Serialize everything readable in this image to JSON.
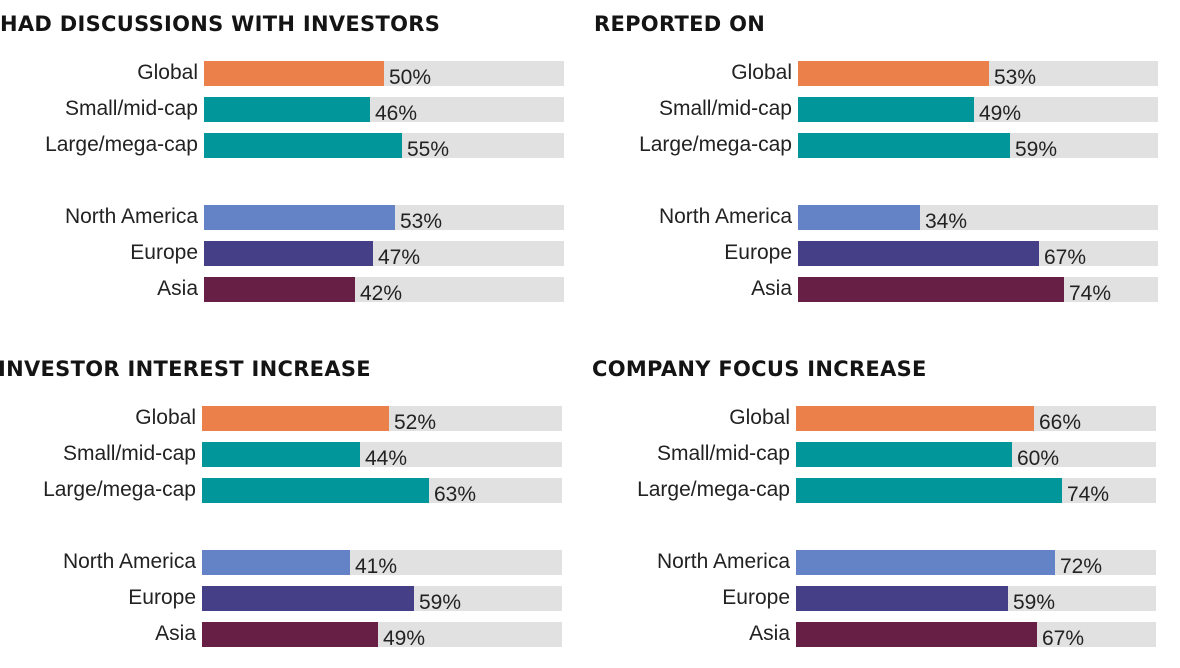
{
  "colors": {
    "Global": "#eb804a",
    "Small/mid-cap": "#00969a",
    "Large/mega-cap": "#00969a",
    "North America": "#6482c6",
    "Europe": "#443f86",
    "Asia": "#681f45",
    "track": "#e1e1e1"
  },
  "chart_data": [
    {
      "type": "bar",
      "orientation": "horizontal",
      "title": "HAD DISCUSSIONS WITH INVESTORS",
      "categories": [
        "Global",
        "Small/mid-cap",
        "Large/mega-cap",
        "North America",
        "Europe",
        "Asia"
      ],
      "values": [
        50,
        46,
        55,
        53,
        47,
        42
      ],
      "labels": [
        "50%",
        "46%",
        "55%",
        "53%",
        "47%",
        "42%"
      ],
      "xlim": [
        0,
        100
      ]
    },
    {
      "type": "bar",
      "orientation": "horizontal",
      "title": "REPORTED ON",
      "categories": [
        "Global",
        "Small/mid-cap",
        "Large/mega-cap",
        "North America",
        "Europe",
        "Asia"
      ],
      "values": [
        53,
        49,
        59,
        34,
        67,
        74
      ],
      "labels": [
        "53%",
        "49%",
        "59%",
        "34%",
        "67%",
        "74%"
      ],
      "xlim": [
        0,
        100
      ]
    },
    {
      "type": "bar",
      "orientation": "horizontal",
      "title": "INVESTOR INTEREST INCREASE",
      "categories": [
        "Global",
        "Small/mid-cap",
        "Large/mega-cap",
        "North America",
        "Europe",
        "Asia"
      ],
      "values": [
        52,
        44,
        63,
        41,
        59,
        49
      ],
      "labels": [
        "52%",
        "44%",
        "63%",
        "41%",
        "59%",
        "49%"
      ],
      "xlim": [
        0,
        100
      ]
    },
    {
      "type": "bar",
      "orientation": "horizontal",
      "title": "COMPANY FOCUS INCREASE",
      "categories": [
        "Global",
        "Small/mid-cap",
        "Large/mega-cap",
        "North America",
        "Europe",
        "Asia"
      ],
      "values": [
        66,
        60,
        74,
        72,
        59,
        67
      ],
      "labels": [
        "66%",
        "60%",
        "74%",
        "72%",
        "59%",
        "67%"
      ],
      "xlim": [
        0,
        100
      ]
    }
  ]
}
